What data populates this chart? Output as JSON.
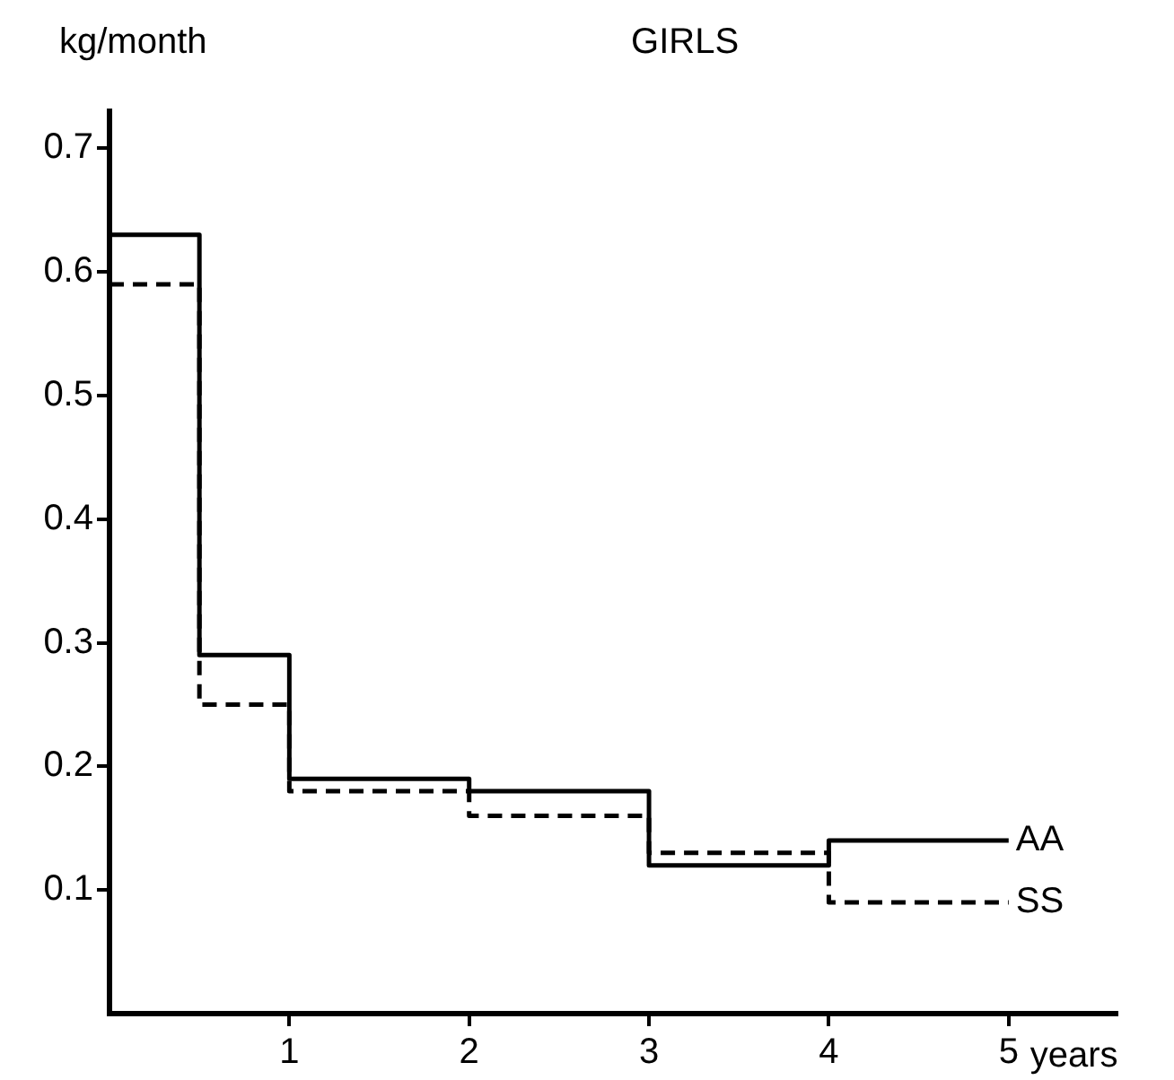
{
  "chart_data": {
    "type": "step",
    "title": "GIRLS",
    "xlabel": "years",
    "ylabel": "kg/month",
    "xlim": [
      0,
      5.6
    ],
    "xticks": [
      1,
      2,
      3,
      4,
      5
    ],
    "ylim": [
      0,
      0.73
    ],
    "yticks": [
      0.1,
      0.2,
      0.3,
      0.4,
      0.5,
      0.6,
      0.7
    ],
    "grid": false,
    "legend": false,
    "series": [
      {
        "name": "AA",
        "color": "#000000",
        "line_style": "solid",
        "x": [
          0,
          0.5,
          1,
          2,
          3,
          4,
          5
        ],
        "values": [
          0.63,
          0.29,
          0.19,
          0.18,
          0.12,
          0.14,
          0.14
        ]
      },
      {
        "name": "SS",
        "color": "#000000",
        "line_style": "dashed",
        "x": [
          0,
          0.5,
          1,
          2,
          3,
          4,
          5
        ],
        "values": [
          0.59,
          0.25,
          0.18,
          0.16,
          0.13,
          0.09,
          0.09
        ]
      }
    ]
  }
}
